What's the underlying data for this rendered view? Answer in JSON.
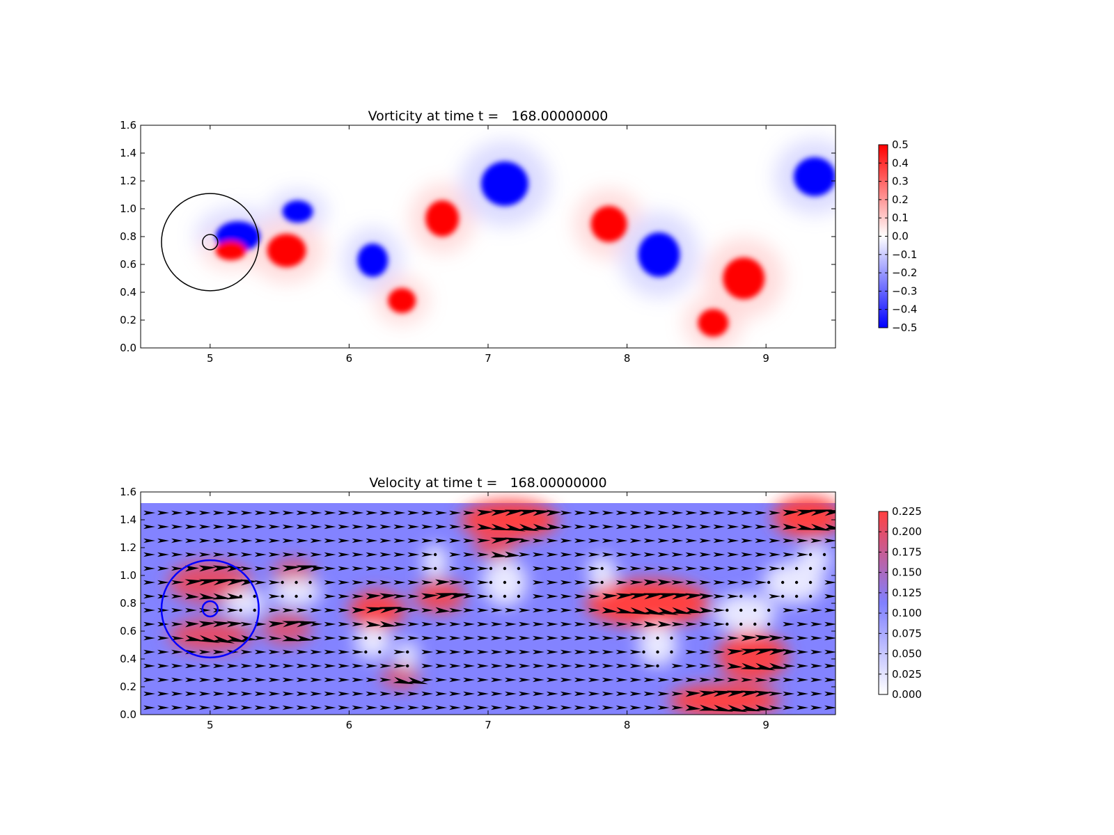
{
  "chart_data": [
    {
      "type": "heatmap",
      "title": "Vorticity at time t =   168.00000000",
      "xlim": [
        4.5,
        9.5
      ],
      "ylim": [
        0.0,
        1.6
      ],
      "xticks": [
        "5",
        "6",
        "7",
        "8",
        "9"
      ],
      "yticks": [
        "0.0",
        "0.2",
        "0.4",
        "0.6",
        "0.8",
        "1.0",
        "1.2",
        "1.4",
        "1.6"
      ],
      "colormap": "bwr",
      "color_low": "#0000ff",
      "color_mid": "#ffffff",
      "color_high": "#ff0000",
      "color_range": [
        -0.5,
        0.5
      ],
      "colorbar_ticks": [
        "0.5",
        "0.4",
        "0.3",
        "0.2",
        "0.1",
        "0.0",
        "−0.1",
        "−0.2",
        "−0.3",
        "−0.4",
        "−0.5"
      ],
      "colorbar_values": [
        0.5,
        0.4,
        0.3,
        0.2,
        0.1,
        0.0,
        -0.1,
        -0.2,
        -0.3,
        -0.4,
        -0.5
      ],
      "vortices": [
        {
          "x": 5.2,
          "y": 0.8,
          "rx": 0.16,
          "ry": 0.11,
          "value": -0.5
        },
        {
          "x": 5.63,
          "y": 0.98,
          "rx": 0.11,
          "ry": 0.08,
          "value": -0.5
        },
        {
          "x": 5.15,
          "y": 0.7,
          "rx": 0.11,
          "ry": 0.07,
          "value": 0.5
        },
        {
          "x": 5.55,
          "y": 0.7,
          "rx": 0.14,
          "ry": 0.12,
          "value": 0.5
        },
        {
          "x": 6.17,
          "y": 0.63,
          "rx": 0.11,
          "ry": 0.12,
          "value": -0.5
        },
        {
          "x": 6.38,
          "y": 0.34,
          "rx": 0.1,
          "ry": 0.09,
          "value": 0.5
        },
        {
          "x": 6.67,
          "y": 0.93,
          "rx": 0.12,
          "ry": 0.13,
          "value": 0.5
        },
        {
          "x": 7.12,
          "y": 1.18,
          "rx": 0.17,
          "ry": 0.16,
          "value": -0.5
        },
        {
          "x": 7.87,
          "y": 0.89,
          "rx": 0.13,
          "ry": 0.13,
          "value": 0.5
        },
        {
          "x": 8.23,
          "y": 0.67,
          "rx": 0.15,
          "ry": 0.16,
          "value": -0.5
        },
        {
          "x": 8.84,
          "y": 0.5,
          "rx": 0.15,
          "ry": 0.15,
          "value": 0.5
        },
        {
          "x": 8.62,
          "y": 0.18,
          "rx": 0.11,
          "ry": 0.1,
          "value": 0.5
        },
        {
          "x": 9.35,
          "y": 1.23,
          "rx": 0.15,
          "ry": 0.14,
          "value": -0.5
        }
      ],
      "overlays": [
        {
          "shape": "circle",
          "x": 5.0,
          "y": 0.76,
          "r": 0.35,
          "color": "#000000"
        },
        {
          "shape": "circle",
          "x": 5.0,
          "y": 0.76,
          "r": 0.055,
          "color": "#000000"
        }
      ]
    },
    {
      "type": "heatmap",
      "subtype": "quiver",
      "title": "Velocity at time t =   168.00000000",
      "xlim": [
        4.5,
        9.5
      ],
      "ylim": [
        0.0,
        1.6
      ],
      "xticks": [
        "5",
        "6",
        "7",
        "8",
        "9"
      ],
      "yticks": [
        "0.0",
        "0.2",
        "0.4",
        "0.6",
        "0.8",
        "1.0",
        "1.2",
        "1.4",
        "1.6"
      ],
      "field_ylim": [
        0.0,
        1.52
      ],
      "color_low": "#ffffff",
      "color_mid": "#8080ff",
      "color_high": "#ff4040",
      "color_range": [
        0.0,
        0.225
      ],
      "background_speed": 0.11,
      "arrow_color": "#000000",
      "colorbar_ticks": [
        "0.225",
        "0.200",
        "0.175",
        "0.150",
        "0.125",
        "0.100",
        "0.075",
        "0.050",
        "0.025",
        "0.000"
      ],
      "colorbar_values": [
        0.225,
        0.2,
        0.175,
        0.15,
        0.125,
        0.1,
        0.075,
        0.05,
        0.025,
        0.0
      ],
      "fast_regions": [
        {
          "x": 5.0,
          "y": 0.95,
          "rx": 0.3,
          "ry": 0.15,
          "speed": 0.2
        },
        {
          "x": 5.0,
          "y": 0.57,
          "rx": 0.3,
          "ry": 0.12,
          "speed": 0.2
        },
        {
          "x": 5.6,
          "y": 1.02,
          "rx": 0.15,
          "ry": 0.1,
          "speed": 0.19
        },
        {
          "x": 5.55,
          "y": 0.62,
          "rx": 0.18,
          "ry": 0.12,
          "speed": 0.19
        },
        {
          "x": 6.2,
          "y": 0.75,
          "rx": 0.2,
          "ry": 0.14,
          "speed": 0.22
        },
        {
          "x": 6.65,
          "y": 0.85,
          "rx": 0.18,
          "ry": 0.12,
          "speed": 0.21
        },
        {
          "x": 7.15,
          "y": 1.4,
          "rx": 0.35,
          "ry": 0.14,
          "speed": 0.23
        },
        {
          "x": 7.05,
          "y": 1.22,
          "rx": 0.15,
          "ry": 0.1,
          "speed": 0.2
        },
        {
          "x": 8.15,
          "y": 0.8,
          "rx": 0.45,
          "ry": 0.17,
          "speed": 0.23
        },
        {
          "x": 8.9,
          "y": 0.42,
          "rx": 0.25,
          "ry": 0.18,
          "speed": 0.22
        },
        {
          "x": 8.7,
          "y": 0.1,
          "rx": 0.4,
          "ry": 0.12,
          "speed": 0.23
        },
        {
          "x": 6.37,
          "y": 0.27,
          "rx": 0.14,
          "ry": 0.09,
          "speed": 0.19
        },
        {
          "x": 9.3,
          "y": 1.42,
          "rx": 0.25,
          "ry": 0.15,
          "speed": 0.23
        }
      ],
      "calm_regions": [
        {
          "x": 5.25,
          "y": 0.8,
          "rx": 0.15,
          "ry": 0.1
        },
        {
          "x": 5.62,
          "y": 0.88,
          "rx": 0.18,
          "ry": 0.1
        },
        {
          "x": 6.17,
          "y": 0.52,
          "rx": 0.13,
          "ry": 0.12
        },
        {
          "x": 6.42,
          "y": 0.43,
          "rx": 0.08,
          "ry": 0.1
        },
        {
          "x": 6.62,
          "y": 1.1,
          "rx": 0.09,
          "ry": 0.12
        },
        {
          "x": 7.12,
          "y": 0.95,
          "rx": 0.16,
          "ry": 0.17
        },
        {
          "x": 7.82,
          "y": 1.02,
          "rx": 0.1,
          "ry": 0.12
        },
        {
          "x": 8.22,
          "y": 0.5,
          "rx": 0.14,
          "ry": 0.15
        },
        {
          "x": 8.85,
          "y": 0.73,
          "rx": 0.22,
          "ry": 0.14
        },
        {
          "x": 9.2,
          "y": 0.95,
          "rx": 0.22,
          "ry": 0.15
        },
        {
          "x": 9.35,
          "y": 1.12,
          "rx": 0.12,
          "ry": 0.1
        }
      ],
      "overlays": [
        {
          "shape": "circle",
          "x": 5.0,
          "y": 0.76,
          "r": 0.35,
          "color": "#0000ff"
        },
        {
          "shape": "circle",
          "x": 5.0,
          "y": 0.76,
          "r": 0.055,
          "color": "#0000ff"
        }
      ]
    }
  ]
}
